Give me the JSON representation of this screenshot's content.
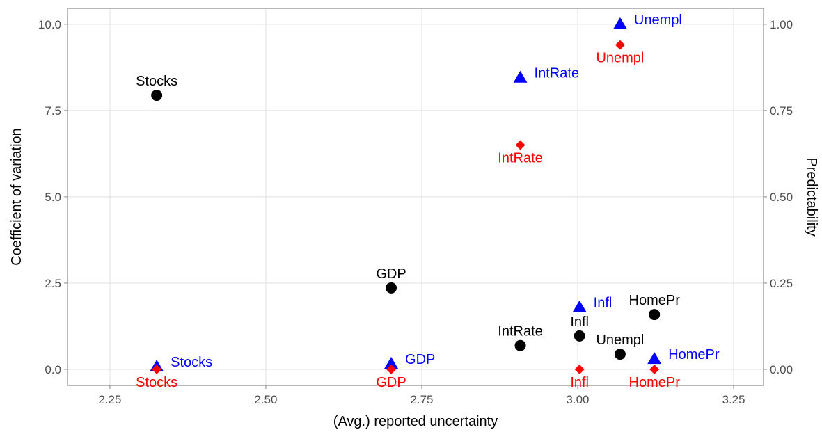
{
  "chart_data": {
    "type": "scatter",
    "x_label": "(Avg.) reported uncertainty",
    "y_label": "Coefficient of variation",
    "y2_label": "Predictability",
    "x": [
      2.325,
      2.701,
      2.908,
      3.003,
      3.068,
      3.123
    ],
    "xlim": [
      2.182,
      3.298
    ],
    "xticks": [
      {
        "value": 2.25,
        "label": "2.25"
      },
      {
        "value": 2.5,
        "label": "2.50"
      },
      {
        "value": 2.75,
        "label": "2.75"
      },
      {
        "value": 3,
        "label": "3.00"
      },
      {
        "value": 3.25,
        "label": "3.25"
      }
    ],
    "ylim": [
      -0.464,
      10.46
    ],
    "yticks": [
      {
        "value": 0,
        "label": "0.0"
      },
      {
        "value": 2.5,
        "label": "2.5"
      },
      {
        "value": 5,
        "label": "5.0"
      },
      {
        "value": 7.5,
        "label": "7.5"
      },
      {
        "value": 10,
        "label": "10.0"
      }
    ],
    "y2lim": [
      -0.0464,
      1.046
    ],
    "y2ticks": [
      {
        "value": 0,
        "label": "0.00"
      },
      {
        "value": 0.25,
        "label": "0.25"
      },
      {
        "value": 0.5,
        "label": "0.50"
      },
      {
        "value": 0.75,
        "label": "0.75"
      },
      {
        "value": 1,
        "label": "1.00"
      }
    ],
    "grid": true,
    "series": [
      {
        "marker": "circle",
        "color": "#000000",
        "label_position": "above",
        "labels": [
          "Stocks",
          "GDP",
          "IntRate",
          "Infl",
          "Unempl",
          "HomePr"
        ],
        "values": [
          7.94,
          2.36,
          0.69,
          0.97,
          0.44,
          1.59
        ]
      },
      {
        "marker": "triangle",
        "color": "#0000ff",
        "axis": "y2",
        "label_position": "right",
        "labels": [
          "Stocks",
          "GDP",
          "IntRate",
          "Infl",
          "Unempl",
          "HomePr"
        ],
        "values": [
          0.008,
          0.016,
          0.845,
          0.18,
          1.0,
          0.03
        ]
      },
      {
        "marker": "diamond",
        "color": "#ff0000",
        "axis": "y2",
        "label_position": "below",
        "labels": [
          "Stocks",
          "GDP",
          "IntRate",
          "Infl",
          "Unempl",
          "HomePr"
        ],
        "values": [
          0,
          0,
          0.65,
          0,
          0.94,
          0
        ]
      }
    ]
  }
}
